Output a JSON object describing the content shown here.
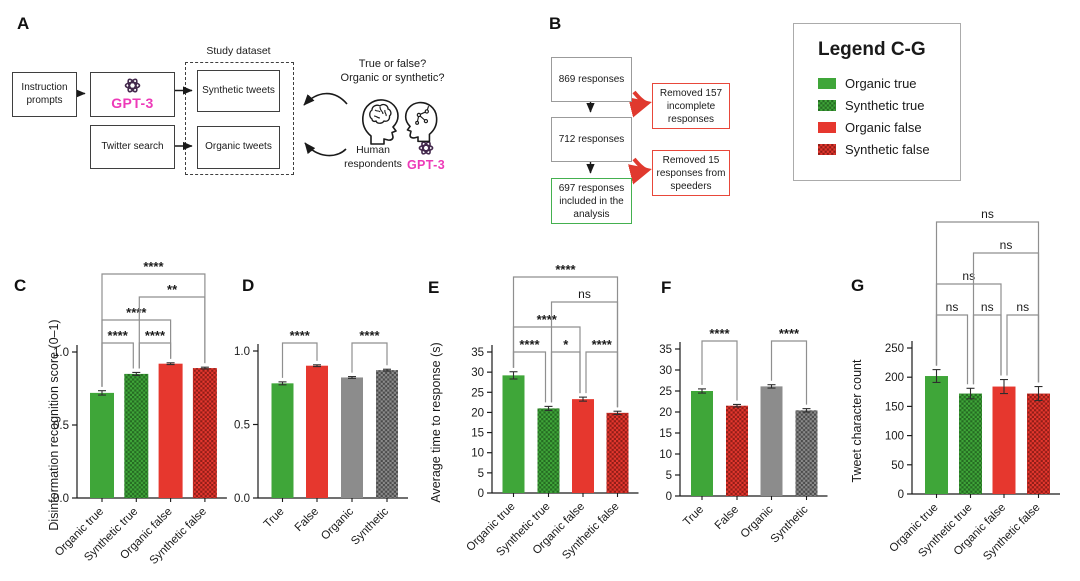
{
  "panel_a": {
    "label": "A",
    "study_dataset_title": "Study dataset",
    "boxes": {
      "instruction": "Instruction prompts",
      "gpt3": "GPT-3",
      "twitter": "Twitter search",
      "synthetic": "Synthetic tweets",
      "organic": "Organic tweets"
    },
    "question_line1": "True or false?",
    "question_line2": "Organic or synthetic?",
    "human_respondents": "Human respondents",
    "gpt3_small": "GPT-3",
    "icons": [
      "openai-logo-icon",
      "cycle-arrows-icon",
      "human-brain-head-icon",
      "ai-circuit-head-icon"
    ]
  },
  "panel_b": {
    "label": "B",
    "flow_boxes": [
      "869 responses",
      "712 responses",
      "697 responses included in the analysis"
    ],
    "removed_boxes": [
      "Removed 157 incomplete responses",
      "Removed 15 responses from speeders"
    ]
  },
  "legend": {
    "title": "Legend C-G",
    "items": [
      {
        "label": "Organic true",
        "style": "green-solid"
      },
      {
        "label": "Synthetic true",
        "style": "green-pattern"
      },
      {
        "label": "Organic false",
        "style": "red-solid"
      },
      {
        "label": "Synthetic false",
        "style": "red-pattern"
      }
    ]
  },
  "colors": {
    "green": "#3FA639",
    "green_dark": "#256B22",
    "red": "#E6372E",
    "red_dark": "#8F1D17",
    "gray": "#8C8C8C",
    "gray_dark": "#4A4A4A",
    "magenta": "#ED3AB8",
    "logo_purple": "#43284C",
    "bracket_gray": "#8F8F8F",
    "ink": "#1a1a1a",
    "flow_border_gray": "#9b9b9b",
    "flow_border_green": "#44b04f",
    "flow_border_red": "#e8473a"
  },
  "chart_data": [
    {
      "id": "C",
      "panel_label": "C",
      "type": "bar",
      "ylabel": "Disinformation recognition score (0–1)",
      "ylim": [
        0,
        1.1
      ],
      "yticks": [
        0,
        0.5,
        1
      ],
      "ytick_labels": [
        "0.0",
        "0.5",
        "1.0"
      ],
      "categories": [
        "Organic true",
        "Synthetic true",
        "Organic false",
        "Synthetic false"
      ],
      "values": [
        0.72,
        0.85,
        0.92,
        0.89
      ],
      "errors": [
        0.015,
        0.01,
        0.006,
        0.006
      ],
      "styles": [
        "green-solid",
        "green-pattern",
        "red-solid",
        "red-pattern"
      ],
      "significance": [
        {
          "from": 0,
          "to": 1,
          "level": 1,
          "label": "****"
        },
        {
          "from": 1,
          "to": 2,
          "level": 1,
          "label": "****"
        },
        {
          "from": 0,
          "to": 2,
          "level": 2,
          "label": "****"
        },
        {
          "from": 1,
          "to": 3,
          "level": 3,
          "label": "**"
        },
        {
          "from": 0,
          "to": 3,
          "level": 4,
          "label": "****"
        }
      ]
    },
    {
      "id": "D",
      "panel_label": "D",
      "type": "bar",
      "ylabel": "",
      "ylim": [
        0,
        1.1
      ],
      "yticks": [
        0,
        0.5,
        1
      ],
      "ytick_labels": [
        "0.0",
        "0.5",
        "1.0"
      ],
      "categories": [
        "True",
        "False",
        "Organic",
        "Synthetic"
      ],
      "values": [
        0.78,
        0.9,
        0.82,
        0.87
      ],
      "errors": [
        0.01,
        0.006,
        0.006,
        0.006
      ],
      "styles": [
        "green-solid",
        "red-solid",
        "gray-solid",
        "gray-pattern"
      ],
      "significance": [
        {
          "from": 0,
          "to": 1,
          "level": 1,
          "label": "****"
        },
        {
          "from": 2,
          "to": 3,
          "level": 1,
          "label": "****"
        }
      ]
    },
    {
      "id": "E",
      "panel_label": "E",
      "type": "bar",
      "ylabel": "Average time to response (s)",
      "ylim": [
        0,
        37
      ],
      "yticks": [
        0,
        5,
        10,
        15,
        20,
        25,
        30,
        35
      ],
      "ytick_labels": [
        "0",
        "5",
        "10",
        "15",
        "20",
        "25",
        "30",
        "35"
      ],
      "categories": [
        "Organic true",
        "Synthetic true",
        "Organic false",
        "Synthetic false"
      ],
      "values": [
        29.2,
        21.0,
        23.3,
        19.9
      ],
      "errors": [
        0.9,
        0.5,
        0.5,
        0.4
      ],
      "styles": [
        "green-solid",
        "green-pattern",
        "red-solid",
        "red-pattern"
      ],
      "significance": [
        {
          "from": 0,
          "to": 1,
          "level": 1,
          "label": "****"
        },
        {
          "from": 1,
          "to": 2,
          "level": 1,
          "label": "*"
        },
        {
          "from": 2,
          "to": 3,
          "level": 1,
          "label": "****"
        },
        {
          "from": 0,
          "to": 2,
          "level": 2,
          "label": "****"
        },
        {
          "from": 1,
          "to": 3,
          "level": 3,
          "label": "ns"
        },
        {
          "from": 0,
          "to": 3,
          "level": 4,
          "label": "****"
        }
      ]
    },
    {
      "id": "F",
      "panel_label": "F",
      "type": "bar",
      "ylabel": "",
      "ylim": [
        0,
        37
      ],
      "yticks": [
        0,
        5,
        10,
        15,
        20,
        25,
        30,
        35
      ],
      "ytick_labels": [
        "0",
        "5",
        "10",
        "15",
        "20",
        "25",
        "30",
        "35"
      ],
      "categories": [
        "True",
        "False",
        "Organic",
        "Synthetic"
      ],
      "values": [
        25.0,
        21.5,
        26.1,
        20.4
      ],
      "errors": [
        0.5,
        0.3,
        0.4,
        0.4
      ],
      "styles": [
        "green-solid",
        "red-pattern",
        "gray-solid",
        "gray-pattern"
      ],
      "significance": [
        {
          "from": 0,
          "to": 1,
          "level": 1,
          "label": "****"
        },
        {
          "from": 2,
          "to": 3,
          "level": 1,
          "label": "****"
        }
      ]
    },
    {
      "id": "G",
      "panel_label": "G",
      "type": "bar",
      "ylabel": "Tweet character count",
      "ylim": [
        0,
        260
      ],
      "yticks": [
        0,
        50,
        100,
        150,
        200,
        250
      ],
      "ytick_labels": [
        "0",
        "50",
        "100",
        "150",
        "200",
        "250"
      ],
      "categories": [
        "Organic true",
        "Synthetic true",
        "Organic false",
        "Synthetic false"
      ],
      "values": [
        202,
        172,
        184,
        172
      ],
      "errors": [
        11,
        9,
        12,
        12
      ],
      "styles": [
        "green-solid",
        "green-pattern",
        "red-solid",
        "red-pattern"
      ],
      "significance": [
        {
          "from": 0,
          "to": 1,
          "level": 1,
          "label": "ns"
        },
        {
          "from": 1,
          "to": 2,
          "level": 1,
          "label": "ns"
        },
        {
          "from": 2,
          "to": 3,
          "level": 1,
          "label": "ns"
        },
        {
          "from": 0,
          "to": 2,
          "level": 2,
          "label": "ns"
        },
        {
          "from": 1,
          "to": 3,
          "level": 3,
          "label": "ns"
        },
        {
          "from": 0,
          "to": 3,
          "level": 4,
          "label": "ns"
        }
      ]
    }
  ]
}
